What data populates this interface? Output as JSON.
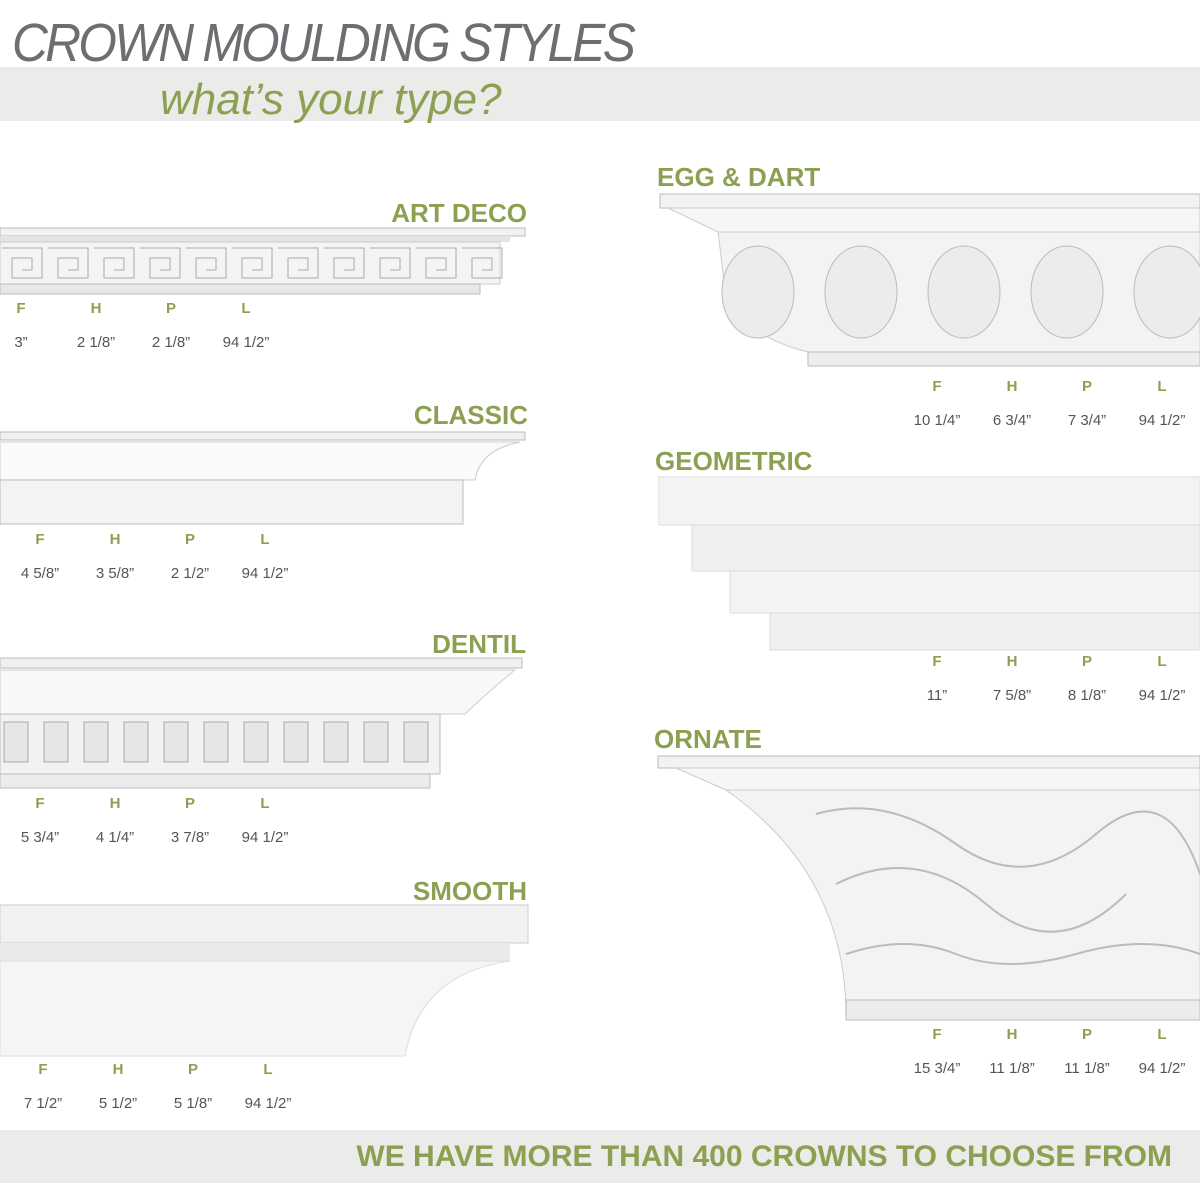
{
  "title": "CROWN MOULDING STYLES",
  "subtitle": "what’s your type?",
  "footer": "WE HAVE MORE THAN 400 CROWNS TO CHOOSE FROM",
  "spec_labels": [
    "F",
    "H",
    "P",
    "L"
  ],
  "colors": {
    "accent": "#8ca051",
    "title": "#6d6e71",
    "band": "#ebebe9"
  },
  "styles": [
    {
      "name": "ART DECO",
      "values": [
        "3”",
        "2 1/8”",
        "2 1/8”",
        "94 1/2”"
      ]
    },
    {
      "name": "CLASSIC",
      "values": [
        "4 5/8”",
        "3 5/8”",
        "2 1/2”",
        "94 1/2”"
      ]
    },
    {
      "name": "DENTIL",
      "values": [
        "5 3/4”",
        "4 1/4”",
        "3 7/8”",
        "94 1/2”"
      ]
    },
    {
      "name": "SMOOTH",
      "values": [
        "7 1/2”",
        "5 1/2”",
        "5 1/8”",
        "94 1/2”"
      ]
    },
    {
      "name": "EGG & DART",
      "values": [
        "10 1/4”",
        "6 3/4”",
        "7 3/4”",
        "94 1/2”"
      ]
    },
    {
      "name": "GEOMETRIC",
      "values": [
        "11”",
        "7 5/8”",
        "8 1/8”",
        "94 1/2”"
      ]
    },
    {
      "name": "ORNATE",
      "values": [
        "15 3/4”",
        "11 1/8”",
        "11 1/8”",
        "94 1/2”"
      ]
    }
  ]
}
